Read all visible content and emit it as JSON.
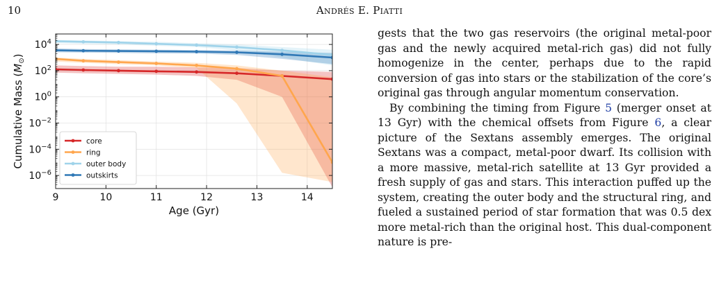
{
  "header": {
    "page_number": "10",
    "running_head": "Andrés E. Piatti"
  },
  "chart_data": {
    "type": "line",
    "xlabel": "Age (Gyr)",
    "ylabel": "Cumulative Mass (M⊙)",
    "ylabel_parts": {
      "main": "Cumulative Mass (",
      "symbol": "M",
      "subscript": "⊙",
      "close": ")"
    },
    "yscale": "log",
    "xlim": [
      9.0,
      14.5
    ],
    "ylim_exp": [
      -7.0,
      4.8
    ],
    "x_ticks": [
      9,
      10,
      11,
      12,
      13,
      14
    ],
    "x_tick_labels": [
      "9",
      "10",
      "11",
      "12",
      "13",
      "14"
    ],
    "y_tick_exps": [
      -6,
      -4,
      -2,
      0,
      2,
      4
    ],
    "y_tick_labels": [
      {
        "base": "10",
        "exp": "−6"
      },
      {
        "base": "10",
        "exp": "−4"
      },
      {
        "base": "10",
        "exp": "−2"
      },
      {
        "base": "10",
        "exp": "0"
      },
      {
        "base": "10",
        "exp": "2"
      },
      {
        "base": "10",
        "exp": "4"
      }
    ],
    "grid": true,
    "legend_position": "bottom-left",
    "x": [
      9.0,
      9.55,
      10.25,
      11.0,
      11.8,
      12.6,
      13.5,
      14.5
    ],
    "series": [
      {
        "name": "core",
        "color": "#d62728",
        "values_exp": [
          2.1,
          2.05,
          2.0,
          1.95,
          1.9,
          1.8,
          1.6,
          1.35
        ],
        "band_upper_exp": [
          2.4,
          2.35,
          2.3,
          2.3,
          2.25,
          2.2,
          2.0,
          1.9
        ],
        "band_lower_exp": [
          1.85,
          1.8,
          1.75,
          1.7,
          1.6,
          1.3,
          0.0,
          -6.9
        ]
      },
      {
        "name": "ring",
        "color": "#ffa64d",
        "values_exp": [
          2.9,
          2.75,
          2.65,
          2.55,
          2.4,
          2.15,
          1.6,
          -5.0
        ],
        "band_upper_exp": [
          3.0,
          2.9,
          2.8,
          2.7,
          2.6,
          2.4,
          2.0,
          1.5
        ],
        "band_lower_exp": [
          2.7,
          2.6,
          2.5,
          2.4,
          2.2,
          -0.5,
          -5.8,
          -6.5
        ]
      },
      {
        "name": "outer body",
        "color": "#9fd3ea",
        "values_exp": [
          4.25,
          4.2,
          4.15,
          4.05,
          3.95,
          3.8,
          3.55,
          3.2
        ],
        "band_upper_exp": [
          4.35,
          4.3,
          4.25,
          4.2,
          4.1,
          4.0,
          3.8,
          3.6
        ],
        "band_lower_exp": [
          4.1,
          4.05,
          4.0,
          3.9,
          3.8,
          3.55,
          3.0,
          2.4
        ]
      },
      {
        "name": "outskirts",
        "color": "#2f78b6",
        "values_exp": [
          3.55,
          3.52,
          3.5,
          3.48,
          3.45,
          3.4,
          3.25,
          3.0
        ],
        "band_upper_exp": [
          3.7,
          3.65,
          3.62,
          3.6,
          3.58,
          3.55,
          3.45,
          3.35
        ],
        "band_lower_exp": [
          3.4,
          3.38,
          3.35,
          3.32,
          3.3,
          3.2,
          2.9,
          2.5
        ]
      }
    ]
  },
  "body": {
    "para1": "gests that the two gas reservoirs (the original metal-poor gas and the newly acquired metal-rich gas) did not fully homogenize in the center, perhaps due to the rapid conversion of gas into stars or the stabilization of the core’s original gas through angular momentum conservation.",
    "para2": {
      "t1": "By combining the timing from Figure ",
      "ref1": "5",
      "t2": " (merger onset at 13 Gyr) with the chemical offsets from Figure ",
      "ref2": "6",
      "t3": ", a clear picture of the Sextans assembly emerges. The original Sextans was a compact, metal-poor dwarf. Its collision with a more massive, metal-rich satellite at 13 Gyr provided a fresh supply of gas and stars. This interaction puffed up the system, creating the outer body and the structural ring, and fueled a sustained period of star formation that was 0.5 dex more metal-rich than the original host. This dual-component nature is pre-"
    }
  }
}
